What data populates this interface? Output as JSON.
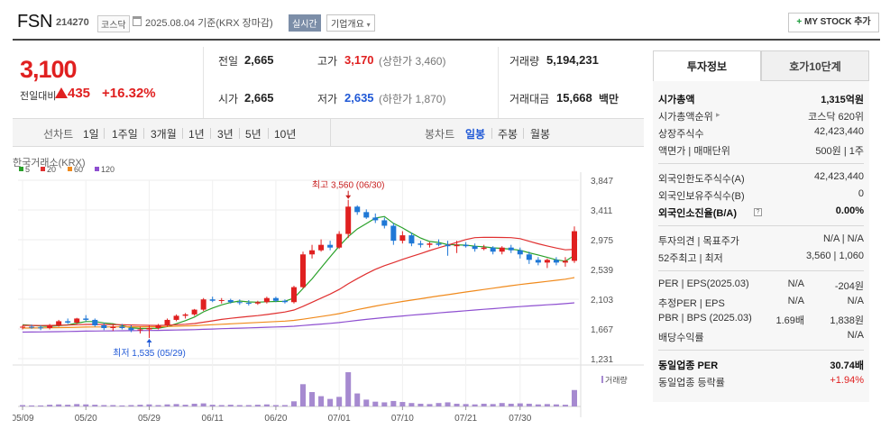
{
  "header": {
    "name": "FSN",
    "code": "214270",
    "market": "코스닥",
    "date": "2025.08.04 기준(KRX 장마감)",
    "realtime": "실시간",
    "overview": "기업개요",
    "mystock": "MY STOCK 추가"
  },
  "quote": {
    "price": "3,100",
    "change_label": "전일대비",
    "change": "435",
    "change_pct": "+16.32%",
    "prev_close_label": "전일",
    "prev_close": "2,665",
    "open_label": "시가",
    "open": "2,665",
    "high_label": "고가",
    "high": "3,170",
    "upper_limit": "(상한가 3,460)",
    "low_label": "저가",
    "low": "2,635",
    "lower_limit": "(하한가 1,870)",
    "volume_label": "거래량",
    "volume": "5,194,231",
    "amount_label": "거래대금",
    "amount": "15,668",
    "amount_unit": "백만"
  },
  "periods": {
    "line_label": "선차트",
    "line_items": [
      "1일",
      "1주일",
      "3개월",
      "1년",
      "3년",
      "5년",
      "10년"
    ],
    "candle_label": "봉차트",
    "candle_items": [
      "일봉",
      "주봉",
      "월봉"
    ],
    "active_candle": "일봉"
  },
  "chart_data": {
    "type": "candlestick",
    "source": "한국거래소(KRX)",
    "legend": [
      {
        "name": "5",
        "color": "#2aa12a"
      },
      {
        "name": "20",
        "color": "#e03030"
      },
      {
        "name": "60",
        "color": "#f08a1c"
      },
      {
        "name": "120",
        "color": "#8e4fd0"
      }
    ],
    "y_ticks": [
      "3,847",
      "3,411",
      "2,975",
      "2,539",
      "2,103",
      "1,667",
      "1,231"
    ],
    "ylim": [
      1231,
      3847
    ],
    "x_ticks": [
      "05/09",
      "05/20",
      "05/29",
      "06/11",
      "06/20",
      "07/01",
      "07/10",
      "07/21",
      "07/30"
    ],
    "x_tick_index": [
      0,
      7,
      14,
      21,
      28,
      35,
      42,
      49,
      55
    ],
    "annotation_high": "최고 3,560 (06/30)",
    "annotation_low": "최저 1,535 (05/29)",
    "volume_label": "거래량",
    "up_color": "#e02020",
    "down_color": "#1f78d6",
    "candles": [
      [
        1690,
        1720,
        1660,
        1700
      ],
      [
        1700,
        1730,
        1670,
        1690
      ],
      [
        1690,
        1720,
        1650,
        1680
      ],
      [
        1680,
        1740,
        1660,
        1720
      ],
      [
        1720,
        1800,
        1700,
        1780
      ],
      [
        1780,
        1820,
        1740,
        1760
      ],
      [
        1760,
        1830,
        1740,
        1820
      ],
      [
        1820,
        1870,
        1780,
        1800
      ],
      [
        1800,
        1820,
        1700,
        1720
      ],
      [
        1720,
        1760,
        1650,
        1680
      ],
      [
        1680,
        1740,
        1640,
        1700
      ],
      [
        1700,
        1740,
        1660,
        1680
      ],
      [
        1680,
        1720,
        1620,
        1650
      ],
      [
        1650,
        1700,
        1600,
        1660
      ],
      [
        1660,
        1720,
        1535,
        1680
      ],
      [
        1680,
        1740,
        1660,
        1720
      ],
      [
        1720,
        1820,
        1700,
        1800
      ],
      [
        1800,
        1880,
        1780,
        1860
      ],
      [
        1860,
        1900,
        1820,
        1880
      ],
      [
        1880,
        1960,
        1860,
        1950
      ],
      [
        1950,
        2120,
        1930,
        2100
      ],
      [
        2100,
        2140,
        2060,
        2080
      ],
      [
        2080,
        2120,
        2040,
        2090
      ],
      [
        2090,
        2110,
        2040,
        2060
      ],
      [
        2060,
        2100,
        2020,
        2050
      ],
      [
        2050,
        2090,
        2010,
        2040
      ],
      [
        2040,
        2080,
        2020,
        2060
      ],
      [
        2060,
        2140,
        2040,
        2120
      ],
      [
        2120,
        2140,
        2060,
        2080
      ],
      [
        2080,
        2100,
        2040,
        2060
      ],
      [
        2060,
        2300,
        2040,
        2280
      ],
      [
        2280,
        2800,
        2260,
        2760
      ],
      [
        2760,
        2900,
        2700,
        2820
      ],
      [
        2820,
        2980,
        2800,
        2900
      ],
      [
        2900,
        2960,
        2820,
        2860
      ],
      [
        2860,
        3100,
        2840,
        3060
      ],
      [
        3060,
        3560,
        3000,
        3460
      ],
      [
        3460,
        3480,
        3340,
        3380
      ],
      [
        3380,
        3420,
        3280,
        3300
      ],
      [
        3300,
        3360,
        3220,
        3260
      ],
      [
        3260,
        3300,
        3140,
        3180
      ],
      [
        3180,
        3220,
        2900,
        2960
      ],
      [
        2960,
        3100,
        2920,
        3040
      ],
      [
        3040,
        3080,
        2880,
        2920
      ],
      [
        2920,
        2960,
        2860,
        2900
      ],
      [
        2900,
        2940,
        2860,
        2920
      ],
      [
        2920,
        2980,
        2880,
        2900
      ],
      [
        2900,
        2960,
        2740,
        2880
      ],
      [
        2880,
        2960,
        2780,
        2900
      ],
      [
        2900,
        2940,
        2860,
        2880
      ],
      [
        2880,
        2920,
        2800,
        2840
      ],
      [
        2840,
        2900,
        2820,
        2860
      ],
      [
        2860,
        2880,
        2760,
        2800
      ],
      [
        2800,
        2880,
        2760,
        2860
      ],
      [
        2860,
        2900,
        2780,
        2820
      ],
      [
        2820,
        2860,
        2700,
        2760
      ],
      [
        2760,
        2800,
        2620,
        2680
      ],
      [
        2680,
        2720,
        2600,
        2640
      ],
      [
        2640,
        2700,
        2560,
        2680
      ],
      [
        2680,
        2720,
        2600,
        2640
      ],
      [
        2640,
        2720,
        2580,
        2665
      ],
      [
        2665,
        3170,
        2635,
        3100
      ]
    ],
    "volumes": [
      4,
      3,
      3,
      5,
      6,
      5,
      7,
      6,
      5,
      4,
      4,
      3,
      4,
      5,
      6,
      4,
      6,
      7,
      5,
      8,
      9,
      5,
      4,
      5,
      4,
      4,
      5,
      6,
      4,
      4,
      15,
      65,
      42,
      30,
      22,
      28,
      100,
      38,
      20,
      14,
      12,
      16,
      13,
      10,
      8,
      7,
      10,
      12,
      8,
      7,
      6,
      8,
      7,
      10,
      8,
      9,
      8,
      6,
      7,
      6,
      5,
      48
    ]
  },
  "panel": {
    "tab_info": "투자정보",
    "tab_ask": "호가10단계",
    "rows1": [
      {
        "l": "시가총액",
        "r": "1,315억원",
        "bold": true
      },
      {
        "l": "시가총액순위",
        "r": "코스닥 620위",
        "arrow": true
      },
      {
        "l": "상장주식수",
        "r": "42,423,440"
      },
      {
        "l": "액면가 | 매매단위",
        "r": "500원 | 1주"
      }
    ],
    "rows2": [
      {
        "l": "외국인한도주식수(A)",
        "r": "42,423,440"
      },
      {
        "l": "외국인보유주식수(B)",
        "r": "0"
      },
      {
        "l": "외국인소진율(B/A)",
        "r": "0.00%",
        "bold": true,
        "mini": true
      }
    ],
    "rows3": [
      {
        "l": "투자의견 | 목표주가",
        "r": "N/A | N/A"
      },
      {
        "l": "52주최고 | 최저",
        "r": "3,560 | 1,060"
      }
    ],
    "rows4": [
      {
        "l": "PER | EPS(2025.03)",
        "r1": "N/A",
        "r2": "-204원"
      },
      {
        "l": "추정PER | EPS",
        "r1": "N/A",
        "r2": "N/A"
      },
      {
        "l": "PBR | BPS (2025.03)",
        "r1": "1.69배",
        "r2": "1,838원"
      },
      {
        "l": "배당수익률",
        "r1": "",
        "r2": "N/A"
      }
    ],
    "rows5": [
      {
        "l": "동일업종 PER",
        "r": "30.74배",
        "bold": true
      },
      {
        "l": "동일업종 등락률",
        "r": "+1.94%",
        "red": true
      }
    ]
  }
}
